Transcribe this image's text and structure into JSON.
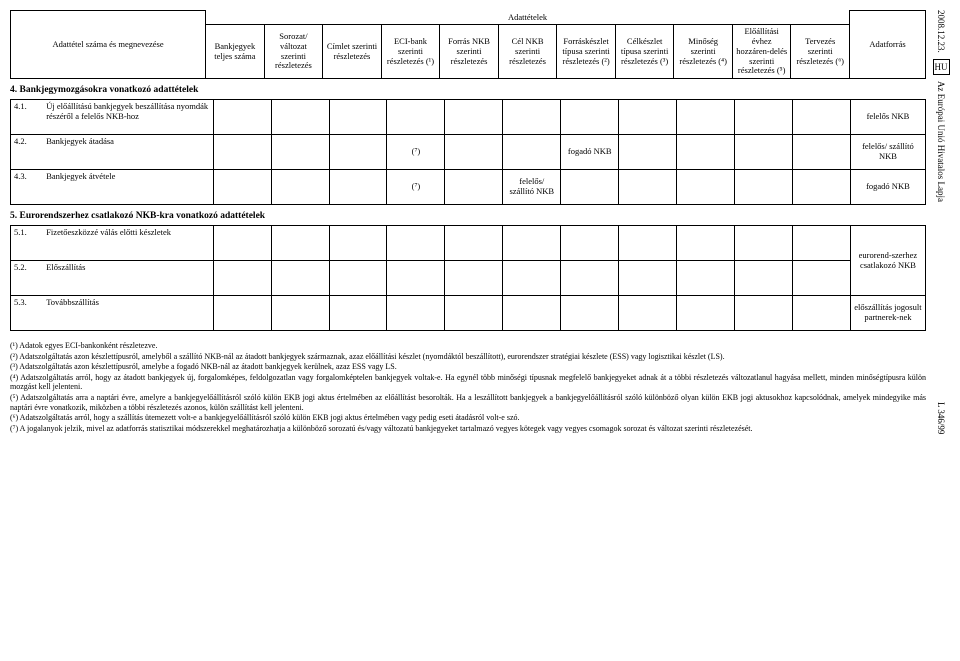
{
  "side": {
    "date": "2008.12.23.",
    "hu": "HU",
    "journal": "Az Európai Unió Hivatalos Lapja",
    "pageref": "L 346/99"
  },
  "header": {
    "top_title": "Adattételek",
    "cols": {
      "name": "Adattétel száma és megnevezése",
      "c1": "Bankjegyek teljes száma",
      "c2": "Sorozat/ változat szerinti részletezés",
      "c3": "Címlet szerinti részletezés",
      "c4": "ECI-bank szerinti részletezés (¹)",
      "c5": "Forrás NKB szerinti részletezés",
      "c6": "Cél NKB szerinti részletezés",
      "c7": "Forráskészlet típusa szerinti részletezés (²)",
      "c8": "Célkészlet típusa szerinti részletezés (³)",
      "c9": "Minőség szerinti részletezés (⁴)",
      "c10": "Előállítási évhez hozzáren-delés szerinti részletezés (⁵)",
      "c11": "Tervezés szerinti részletezés (⁶)",
      "src": "Adatforrás"
    }
  },
  "section4": {
    "title": "4. Bankjegymozgásokra vonatkozó adattételek",
    "rows": [
      {
        "num": "4.1.",
        "name": "Új előállítású bankjegyek beszállítása nyomdák részéről a felelős NKB-hoz",
        "c": [
          "",
          "",
          "",
          "",
          "",
          "",
          "",
          "",
          "",
          "",
          ""
        ],
        "src": "felelős NKB"
      },
      {
        "num": "4.2.",
        "name": "Bankjegyek átadása",
        "c": [
          "",
          "",
          "",
          "(⁷)",
          "",
          "",
          "fogadó NKB",
          "",
          "",
          "",
          ""
        ],
        "src": "felelős/ szállító NKB"
      },
      {
        "num": "4.3.",
        "name": "Bankjegyek átvétele",
        "c": [
          "",
          "",
          "",
          "(⁷)",
          "",
          "felelős/ szállító NKB",
          "",
          "",
          "",
          "",
          ""
        ],
        "src": "fogadó NKB"
      }
    ]
  },
  "section5": {
    "title": "5. Eurorendszerhez csatlakozó NKB-kra vonatkozó adattételek",
    "rows": [
      {
        "num": "5.1.",
        "name": "Fizetőeszközzé válás előtti készletek",
        "c": [
          "",
          "",
          "",
          "",
          "",
          "",
          "",
          "",
          "",
          "",
          ""
        ],
        "src": "eurorend-szerhez csatlakozó NKB",
        "mergeSrc": true
      },
      {
        "num": "5.2.",
        "name": "Előszállítás",
        "c": [
          "",
          "",
          "",
          "",
          "",
          "",
          "",
          "",
          "",
          "",
          ""
        ],
        "src": ""
      },
      {
        "num": "5.3.",
        "name": "Továbbszállítás",
        "c": [
          "",
          "",
          "",
          "",
          "",
          "",
          "",
          "",
          "",
          "",
          ""
        ],
        "src": "előszállítás jogosult partnerek-nek"
      }
    ]
  },
  "footnotes": [
    "(¹)  Adatok egyes ECI-bankonként részletezve.",
    "(²)  Adatszolgáltatás azon készlettípusról, amelyből a szállító NKB-nál az átadott bankjegyek származnak, azaz előállítási készlet (nyomdáktól beszállított), eurorendszer stratégiai készlete (ESS) vagy logisztikai készlet (LS).",
    "(³)  Adatszolgáltatás azon készlettípusról, amelybe a fogadó NKB-nál az átadott bankjegyek kerülnek, azaz ESS vagy LS.",
    "(⁴)  Adatszolgáltatás arról, hogy az átadott bankjegyek új, forgalomképes, feldolgozatlan vagy forgalomképtelen bankjegyek voltak-e. Ha egynél több minőségi típusnak megfelelő bankjegyeket adnak át a többi részletezés változatlanul hagyása mellett, minden minőségtípusra külön mozgást kell jelenteni.",
    "(⁵)  Adatszolgáltatás arra a naptári évre, amelyre a bankjegyelőállításról szóló külön EKB jogi aktus értelmében az előállítást besorolták. Ha a leszállított bankjegyek a bankjegyelőállításról szóló különböző olyan külön EKB jogi aktusokhoz kapcsolódnak, amelyek mindegyike más naptári évre vonatkozik, miközben a többi részletezés azonos, külön szállítást kell jelenteni.",
    "(⁶)  Adatszolgáltatás arról, hogy a szállítás ütemezett volt-e a bankjegyelőállításról szóló külön EKB jogi aktus értelmében vagy pedig eseti átadásról volt-e szó.",
    "(⁷)  A jogalanyok jelzik, mivel az adatforrás statisztikai módszerekkel meghatározhatja a különböző sorozatú és/vagy változatú bankjegyeket tartalmazó vegyes kötegek vagy vegyes csomagok sorozat és változat szerinti részletezését."
  ]
}
